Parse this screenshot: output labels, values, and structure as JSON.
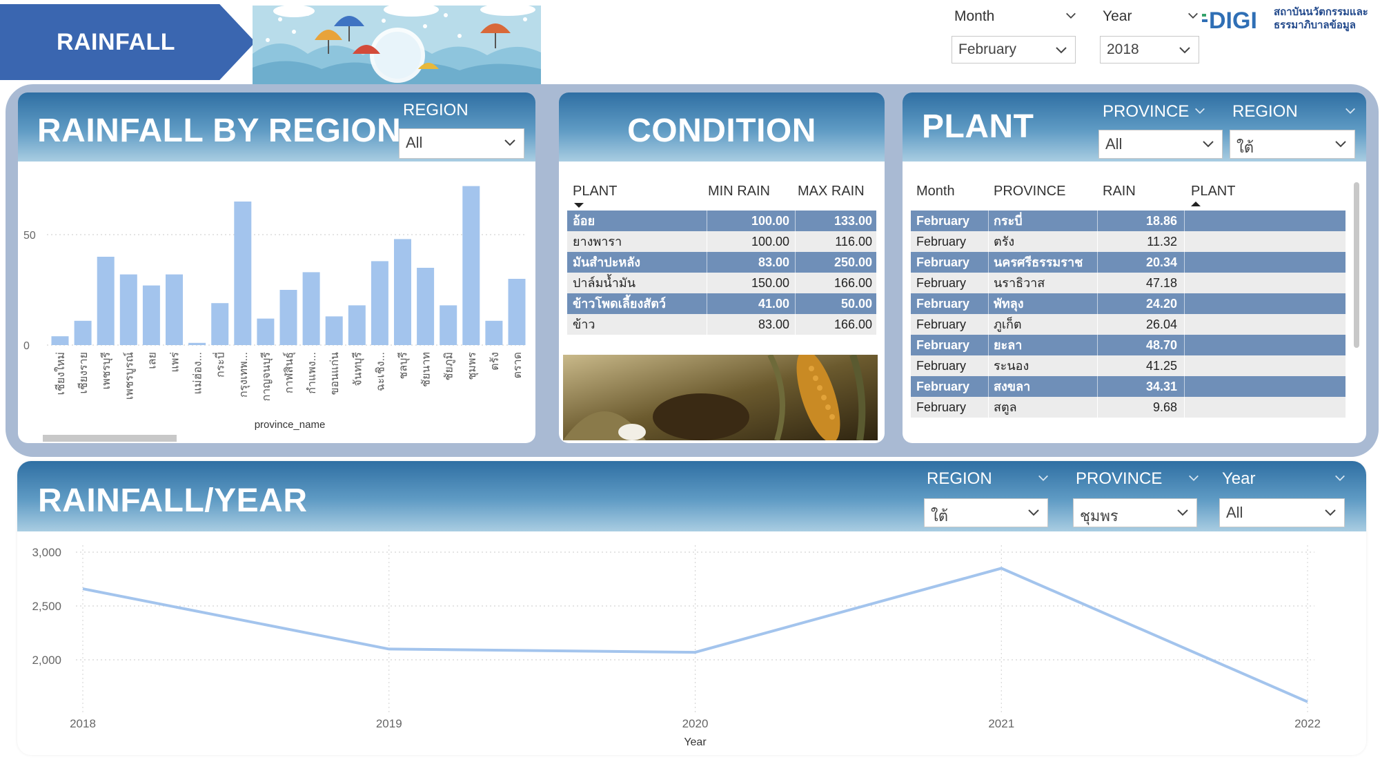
{
  "header": {
    "title": "RAINFALL",
    "month_label": "Month",
    "month_value": "February",
    "year_label": "Year",
    "year_value": "2018",
    "logo_text_line1": "สถาบันนวัตกรรมและ",
    "logo_text_line2": "ธรรมาภิบาลข้อมูล",
    "logo_mark": "DIGI"
  },
  "region_card": {
    "title": "RAINFALL BY REGION",
    "filter_label": "REGION",
    "filter_value": "All",
    "xlabel": "province_name"
  },
  "condition_card": {
    "title": "CONDITION",
    "columns": [
      "PLANT",
      "MIN RAIN",
      "MAX RAIN"
    ],
    "rows": [
      {
        "plant": "อ้อย",
        "min": "100.00",
        "max": "133.00"
      },
      {
        "plant": "ยางพารา",
        "min": "100.00",
        "max": "116.00"
      },
      {
        "plant": "มันสำปะหลัง",
        "min": "83.00",
        "max": "250.00"
      },
      {
        "plant": "ปาล์มน้ำมัน",
        "min": "150.00",
        "max": "166.00"
      },
      {
        "plant": "ข้าวโพดเลี้ยงสัตว์",
        "min": "41.00",
        "max": "50.00"
      },
      {
        "plant": "ข้าว",
        "min": "83.00",
        "max": "166.00"
      }
    ]
  },
  "plant_card": {
    "title": "PLANT",
    "province_label": "PROVINCE",
    "province_value": "All",
    "region_label": "REGION",
    "region_value": "ใต้",
    "columns": [
      "Month",
      "PROVINCE",
      "RAIN",
      "PLANT"
    ],
    "rows": [
      {
        "month": "February",
        "province": "กระบี่",
        "rain": "18.86",
        "plant": ""
      },
      {
        "month": "February",
        "province": "ตรัง",
        "rain": "11.32",
        "plant": ""
      },
      {
        "month": "February",
        "province": "นครศรีธรรมราช",
        "rain": "20.34",
        "plant": ""
      },
      {
        "month": "February",
        "province": "นราธิวาส",
        "rain": "47.18",
        "plant": ""
      },
      {
        "month": "February",
        "province": "พัทลุง",
        "rain": "24.20",
        "plant": ""
      },
      {
        "month": "February",
        "province": "ภูเก็ต",
        "rain": "26.04",
        "plant": ""
      },
      {
        "month": "February",
        "province": "ยะลา",
        "rain": "48.70",
        "plant": ""
      },
      {
        "month": "February",
        "province": "ระนอง",
        "rain": "41.25",
        "plant": ""
      },
      {
        "month": "February",
        "province": "สงขลา",
        "rain": "34.31",
        "plant": ""
      },
      {
        "month": "February",
        "province": "สตูล",
        "rain": "9.68",
        "plant": ""
      }
    ]
  },
  "year_card": {
    "title": "RAINFALL/YEAR",
    "region_label": "REGION",
    "region_value": "ใต้",
    "province_label": "PROVINCE",
    "province_value": "ชุมพร",
    "year_label": "Year",
    "year_value": "All",
    "xlabel": "Year"
  },
  "chart_data": [
    {
      "type": "bar",
      "xlabel": "province_name",
      "ylabel": "",
      "ylim": [
        0,
        80
      ],
      "yticks": [
        0,
        50
      ],
      "grid": true,
      "color": "#a3c4ed",
      "categories": [
        "เชียงใหม่",
        "เชียงราย",
        "เพชรบุรี",
        "เพชรบูรณ์",
        "เลย",
        "แพร่",
        "แม่ฮ่อง...",
        "กระบี่",
        "กรุงเทพ...",
        "กาญจนบุรี",
        "กาฬสินธุ์",
        "กำแพง...",
        "ขอนแก่น",
        "จันทบุรี",
        "ฉะเชิง...",
        "ชลบุรี",
        "ชัยนาท",
        "ชัยภูมิ",
        "ชุมพร",
        "ตรัง",
        "ตราด"
      ],
      "values": [
        4,
        11,
        40,
        32,
        27,
        32,
        1,
        19,
        65,
        12,
        25,
        33,
        13,
        18,
        38,
        48,
        35,
        18,
        72,
        11,
        30
      ]
    },
    {
      "type": "line",
      "xlabel": "Year",
      "ylabel": "",
      "x": [
        "2018",
        "2019",
        "2020",
        "2021",
        "2022"
      ],
      "yticks": [
        2000,
        2500,
        3000
      ],
      "ylim": [
        1600,
        3000
      ],
      "grid": true,
      "color": "#a3c4ed",
      "series": [
        {
          "values": [
            2660,
            2100,
            2070,
            2850,
            1610
          ]
        }
      ]
    }
  ]
}
